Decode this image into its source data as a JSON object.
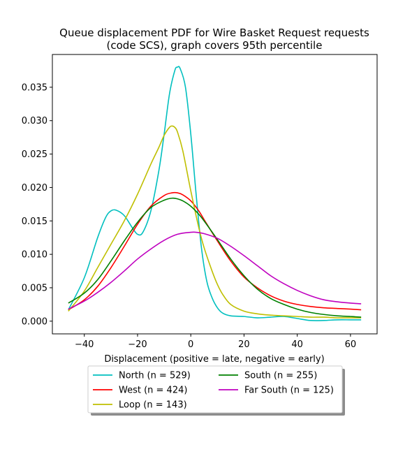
{
  "chart_data": {
    "type": "line",
    "title_line1": "Queue displacement PDF for Wire Basket Request  requests",
    "title_line2": "(code SCS), graph covers 95th percentile",
    "xlabel": "Displacement (positive = late, negative = early)",
    "ylabel": "",
    "xlim": [
      -52,
      70
    ],
    "ylim": [
      -0.0019,
      0.0399
    ],
    "xticks": [
      -40,
      -20,
      0,
      20,
      40,
      60
    ],
    "xtick_labels": [
      "−40",
      "−20",
      "0",
      "20",
      "40",
      "60"
    ],
    "yticks": [
      0.0,
      0.005,
      0.01,
      0.015,
      0.02,
      0.025,
      0.03,
      0.035
    ],
    "ytick_labels": [
      "0.000",
      "0.005",
      "0.010",
      "0.015",
      "0.020",
      "0.025",
      "0.030",
      "0.035"
    ],
    "grid": false,
    "legend_placement": "below-center",
    "series": [
      {
        "name": "North (n = 529)",
        "color": "#00bfbf",
        "x": [
          -46,
          -40,
          -35,
          -32,
          -30,
          -28,
          -25,
          -22,
          -20,
          -18,
          -15,
          -12,
          -10,
          -8,
          -6,
          -5,
          -4,
          -2,
          0,
          2,
          4,
          6,
          8,
          10,
          12,
          15,
          20,
          25,
          30,
          35,
          40,
          45,
          50,
          55,
          60,
          64
        ],
        "y": [
          0.0017,
          0.0065,
          0.0125,
          0.0155,
          0.0165,
          0.0166,
          0.0158,
          0.014,
          0.013,
          0.0133,
          0.0165,
          0.0225,
          0.028,
          0.034,
          0.0375,
          0.038,
          0.0378,
          0.035,
          0.028,
          0.019,
          0.011,
          0.006,
          0.0035,
          0.002,
          0.0012,
          0.0008,
          0.0007,
          0.0005,
          0.0006,
          0.0007,
          0.0004,
          0.0001,
          0.0001,
          0.0002,
          0.0002,
          0.0002
        ]
      },
      {
        "name": "West (n = 424)",
        "color": "#ff0000",
        "x": [
          -46,
          -40,
          -35,
          -30,
          -25,
          -20,
          -15,
          -10,
          -7,
          -5,
          -3,
          0,
          3,
          5,
          10,
          15,
          20,
          25,
          30,
          35,
          40,
          45,
          50,
          55,
          60,
          64
        ],
        "y": [
          0.0017,
          0.0032,
          0.0052,
          0.008,
          0.0112,
          0.0145,
          0.0172,
          0.0188,
          0.0192,
          0.0192,
          0.0189,
          0.018,
          0.0165,
          0.0152,
          0.012,
          0.009,
          0.0066,
          0.005,
          0.0038,
          0.003,
          0.0025,
          0.0022,
          0.002,
          0.0019,
          0.0018,
          0.0017
        ]
      },
      {
        "name": "Loop (n = 143)",
        "color": "#bfbf00",
        "x": [
          -46,
          -40,
          -35,
          -30,
          -25,
          -20,
          -15,
          -12,
          -10,
          -8,
          -7,
          -6,
          -5,
          -3,
          0,
          3,
          5,
          8,
          10,
          12,
          15,
          20,
          25,
          30,
          35,
          40,
          45,
          50,
          55,
          60,
          64
        ],
        "y": [
          0.0015,
          0.0045,
          0.008,
          0.0115,
          0.015,
          0.019,
          0.0235,
          0.026,
          0.0278,
          0.029,
          0.0292,
          0.029,
          0.0283,
          0.0255,
          0.0195,
          0.014,
          0.011,
          0.0075,
          0.0055,
          0.004,
          0.0025,
          0.0015,
          0.0011,
          0.0009,
          0.0008,
          0.0007,
          0.0006,
          0.0006,
          0.0005,
          0.0005,
          0.0005
        ]
      },
      {
        "name": "South (n = 255)",
        "color": "#008000",
        "x": [
          -46,
          -40,
          -35,
          -30,
          -25,
          -20,
          -15,
          -10,
          -7,
          -5,
          -3,
          0,
          3,
          5,
          10,
          15,
          20,
          25,
          30,
          35,
          40,
          45,
          50,
          55,
          60,
          64
        ],
        "y": [
          0.0027,
          0.0042,
          0.0062,
          0.009,
          0.012,
          0.0148,
          0.017,
          0.0181,
          0.0184,
          0.0183,
          0.018,
          0.0172,
          0.016,
          0.015,
          0.0122,
          0.0093,
          0.0068,
          0.0048,
          0.0034,
          0.0025,
          0.0018,
          0.0013,
          0.001,
          0.0008,
          0.0007,
          0.0006
        ]
      },
      {
        "name": "Far South (n = 125)",
        "color": "#bf00bf",
        "x": [
          -46,
          -40,
          -35,
          -30,
          -25,
          -20,
          -15,
          -10,
          -5,
          0,
          2,
          5,
          10,
          15,
          20,
          25,
          30,
          35,
          40,
          45,
          50,
          55,
          60,
          64
        ],
        "y": [
          0.0018,
          0.003,
          0.0043,
          0.0058,
          0.0075,
          0.0093,
          0.0108,
          0.0121,
          0.013,
          0.0133,
          0.0133,
          0.0131,
          0.0124,
          0.0112,
          0.0098,
          0.0083,
          0.0068,
          0.0056,
          0.0046,
          0.0038,
          0.0032,
          0.0029,
          0.0027,
          0.0026
        ]
      }
    ]
  }
}
